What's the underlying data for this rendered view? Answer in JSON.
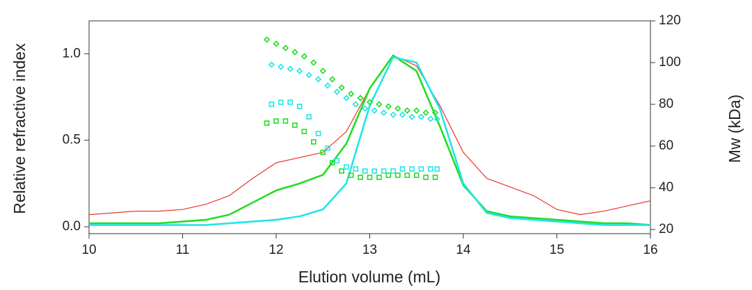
{
  "chart_data": {
    "type": "line",
    "xlabel": "Elution volume (mL)",
    "ylabel": "Relative refractive index",
    "y2label": "Mw (kDa)",
    "xlim": [
      10,
      16
    ],
    "xticks": [
      10,
      11,
      12,
      13,
      14,
      15,
      16
    ],
    "ylim": [
      -0.04,
      1.19
    ],
    "yticks": [
      {
        "value": 0,
        "label": "0.0"
      },
      {
        "value": 0.5,
        "label": "0.5"
      },
      {
        "value": 1,
        "label": "1.0"
      }
    ],
    "y2lim": [
      18,
      120
    ],
    "y2ticks": [
      20,
      40,
      60,
      80,
      100,
      120
    ],
    "series": [
      {
        "color": "#e8362f",
        "style": "line",
        "width": 1.2,
        "x": [
          10,
          10.25,
          10.5,
          10.75,
          11,
          11.25,
          11.5,
          11.75,
          12,
          12.25,
          12.5,
          12.75,
          13,
          13.25,
          13.5,
          13.75,
          14,
          14.25,
          14.5,
          14.75,
          15,
          15.25,
          15.5,
          15.75,
          16
        ],
        "values": [
          0.07,
          0.08,
          0.09,
          0.09,
          0.1,
          0.13,
          0.18,
          0.28,
          0.37,
          0.4,
          0.43,
          0.55,
          0.8,
          0.99,
          0.93,
          0.7,
          0.43,
          0.28,
          0.23,
          0.18,
          0.1,
          0.07,
          0.09,
          0.12,
          0.15
        ]
      },
      {
        "color": "#22dd22",
        "style": "line",
        "width": 2.6,
        "x": [
          10,
          10.25,
          10.5,
          10.75,
          11,
          11.25,
          11.5,
          11.75,
          12,
          12.25,
          12.5,
          12.75,
          13,
          13.25,
          13.5,
          13.75,
          14,
          14.25,
          14.5,
          14.75,
          15,
          15.25,
          15.5,
          15.75,
          16
        ],
        "values": [
          0.02,
          0.02,
          0.02,
          0.02,
          0.03,
          0.04,
          0.07,
          0.14,
          0.21,
          0.25,
          0.3,
          0.48,
          0.8,
          0.99,
          0.9,
          0.58,
          0.24,
          0.09,
          0.06,
          0.05,
          0.04,
          0.03,
          0.02,
          0.02,
          0.01
        ]
      },
      {
        "color": "#22e5e8",
        "style": "line",
        "width": 2.6,
        "x": [
          10,
          10.25,
          10.5,
          10.75,
          11,
          11.25,
          11.5,
          11.75,
          12,
          12.25,
          12.5,
          12.75,
          13,
          13.25,
          13.5,
          13.75,
          14,
          14.25,
          14.5,
          14.75,
          15,
          15.25,
          15.5,
          15.75,
          16
        ],
        "values": [
          0.01,
          0.01,
          0.01,
          0.01,
          0.01,
          0.01,
          0.02,
          0.03,
          0.04,
          0.06,
          0.1,
          0.25,
          0.7,
          0.98,
          0.95,
          0.68,
          0.25,
          0.08,
          0.05,
          0.04,
          0.03,
          0.02,
          0.01,
          0.01,
          0.01
        ]
      },
      {
        "color": "#22dd22",
        "style": "diamond",
        "axis": "y2",
        "x": [
          11.9,
          12,
          12.1,
          12.2,
          12.3,
          12.4,
          12.5,
          12.6,
          12.7,
          12.8,
          12.9,
          13,
          13.1,
          13.2,
          13.3,
          13.4,
          13.5,
          13.6,
          13.7
        ],
        "values": [
          111,
          109,
          107,
          105,
          103,
          100,
          96,
          92,
          88,
          85,
          83,
          81,
          80,
          79,
          78,
          77,
          77,
          76,
          76
        ]
      },
      {
        "color": "#22e5e8",
        "style": "diamond",
        "axis": "y2",
        "x": [
          11.95,
          12.05,
          12.15,
          12.25,
          12.35,
          12.45,
          12.55,
          12.65,
          12.75,
          12.85,
          12.95,
          13.05,
          13.15,
          13.25,
          13.35,
          13.45,
          13.55,
          13.65,
          13.72
        ],
        "values": [
          99,
          98,
          97,
          96,
          94,
          92,
          89,
          86,
          83,
          80,
          78,
          77,
          76,
          75,
          75,
          74,
          74,
          73,
          73
        ]
      },
      {
        "color": "#22dd22",
        "style": "square",
        "axis": "y2",
        "x": [
          11.9,
          12,
          12.1,
          12.2,
          12.3,
          12.4,
          12.5,
          12.6,
          12.7,
          12.8,
          12.9,
          13,
          13.1,
          13.2,
          13.3,
          13.4,
          13.5,
          13.6,
          13.7
        ],
        "values": [
          71,
          72,
          72,
          70,
          67,
          62,
          57,
          52,
          48,
          46,
          45,
          45,
          45,
          46,
          46,
          46,
          46,
          45,
          45
        ]
      },
      {
        "color": "#22e5e8",
        "style": "square",
        "axis": "y2",
        "x": [
          11.95,
          12.05,
          12.15,
          12.25,
          12.35,
          12.45,
          12.55,
          12.65,
          12.75,
          12.85,
          12.95,
          13.05,
          13.15,
          13.25,
          13.35,
          13.45,
          13.55,
          13.65,
          13.72
        ],
        "values": [
          80,
          81,
          81,
          79,
          74,
          66,
          59,
          53,
          50,
          49,
          48,
          48,
          48,
          48,
          49,
          49,
          49,
          49,
          49
        ]
      }
    ]
  }
}
